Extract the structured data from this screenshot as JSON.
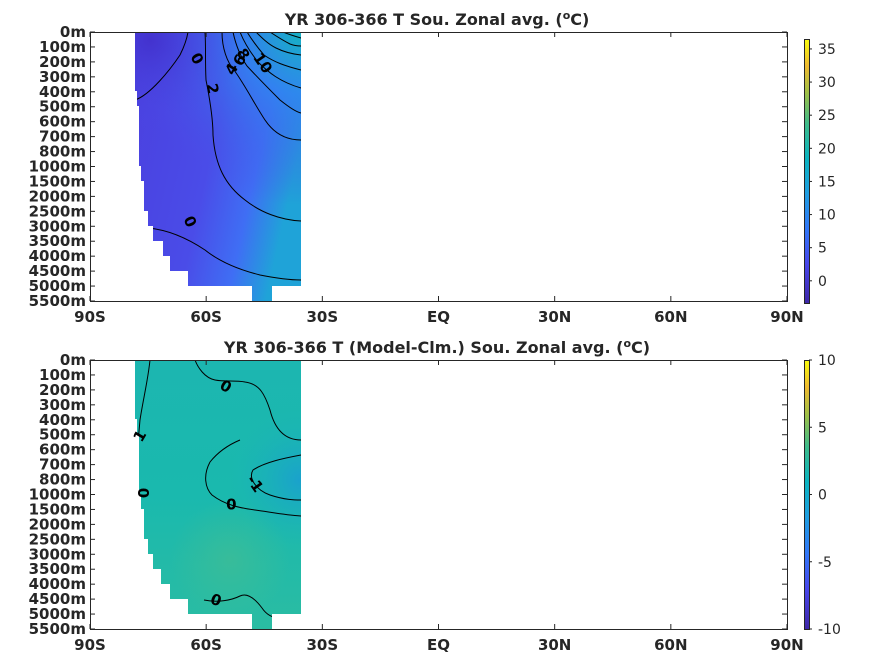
{
  "chart_data": [
    {
      "type": "heatmap",
      "title": "YR 306-366 T Sou. Zonal avg. (",
      "title_sup": "o",
      "title_end": "C)",
      "xticks": [
        "90S",
        "60S",
        "30S",
        "EQ",
        "30N",
        "60N",
        "90N"
      ],
      "xvalues": [
        -90,
        -60,
        -30,
        0,
        30,
        60,
        90
      ],
      "yticks": [
        "0m",
        "100m",
        "200m",
        "300m",
        "400m",
        "500m",
        "600m",
        "700m",
        "800m",
        "1000m",
        "1500m",
        "2000m",
        "2500m",
        "3000m",
        "3500m",
        "4000m",
        "4500m",
        "5000m",
        "5500m"
      ],
      "xlim": [
        -90,
        90
      ],
      "colorbar": {
        "ticks": [
          "35",
          "30",
          "25",
          "20",
          "15",
          "10",
          "5",
          "0"
        ],
        "values": [
          35,
          30,
          25,
          20,
          15,
          10,
          5,
          0
        ],
        "range": [
          -3.5,
          36.5
        ]
      },
      "contour_labels": [
        {
          "text": "0",
          "lat": -62.5,
          "depth_index": 1.8,
          "rot": 60
        },
        {
          "text": "2",
          "lat": -58.5,
          "depth_index": 3.8,
          "rot": 80
        },
        {
          "text": "4",
          "lat": -53.3,
          "depth_index": 2.5,
          "rot": -60
        },
        {
          "text": "6",
          "lat": -51.2,
          "depth_index": 1.9,
          "rot": -60
        },
        {
          "text": "8",
          "lat": -50.6,
          "depth_index": 1.5,
          "rot": 60
        },
        {
          "text": "10",
          "lat": -45.5,
          "depth_index": 2.1,
          "rot": 55
        },
        {
          "text": "0",
          "lat": -64.3,
          "depth_index": 12.7,
          "rot": 65
        }
      ]
    },
    {
      "type": "heatmap",
      "title": "YR 306-366 T (Model-Clm.) Sou. Zonal avg. (",
      "title_sup": "o",
      "title_end": "C)",
      "xticks": [
        "90S",
        "60S",
        "30S",
        "EQ",
        "30N",
        "60N",
        "90N"
      ],
      "xvalues": [
        -90,
        -60,
        -30,
        0,
        30,
        60,
        90
      ],
      "yticks": [
        "0m",
        "100m",
        "200m",
        "300m",
        "400m",
        "500m",
        "600m",
        "700m",
        "800m",
        "1000m",
        "1500m",
        "2000m",
        "2500m",
        "3000m",
        "3500m",
        "4000m",
        "4500m",
        "5000m",
        "5500m"
      ],
      "xlim": [
        -90,
        90
      ],
      "colorbar": {
        "ticks": [
          "10",
          "5",
          "0",
          "-5",
          "-10"
        ],
        "values": [
          10,
          5,
          0,
          -5,
          -10
        ],
        "range": [
          -10,
          10
        ]
      },
      "contour_labels": [
        {
          "text": "0",
          "lat": -55,
          "depth_index": 1.8,
          "rot": 30
        },
        {
          "text": "1",
          "lat": -77,
          "depth_index": 5.1,
          "rot": -60
        },
        {
          "text": "-1",
          "lat": -47.5,
          "depth_index": 8.3,
          "rot": 55
        },
        {
          "text": "0",
          "lat": -76.5,
          "depth_index": 8.9,
          "rot": 90
        },
        {
          "text": "0",
          "lat": -53.5,
          "depth_index": 9.7,
          "rot": 0
        },
        {
          "text": "0",
          "lat": -57.5,
          "depth_index": 16.1,
          "rot": 20
        }
      ]
    }
  ]
}
